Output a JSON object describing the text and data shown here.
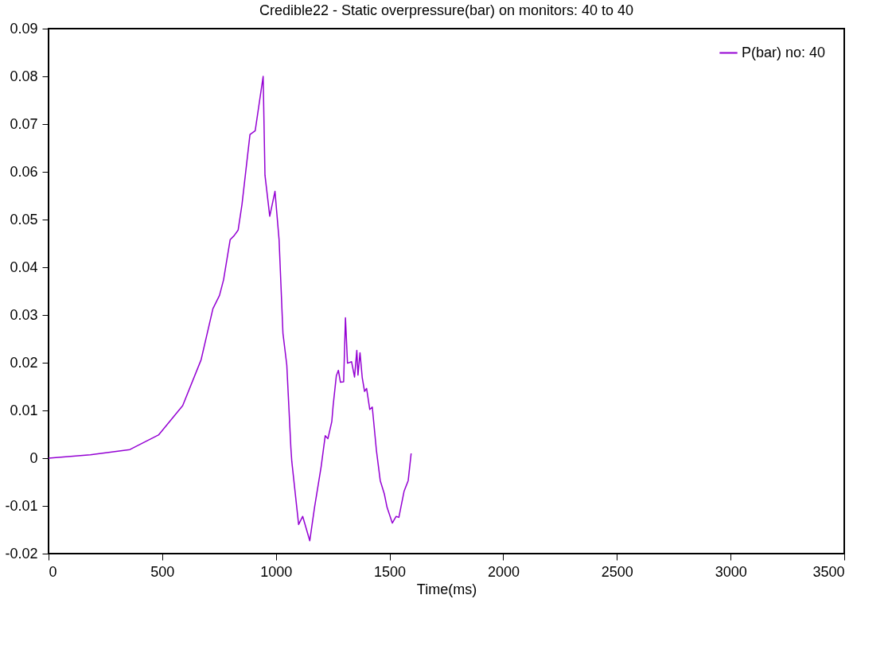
{
  "chart_data": {
    "type": "line",
    "title": "Credible22 - Static overpressure(bar) on monitors: 40  to 40",
    "xlabel": "Time(ms)",
    "series": [
      {
        "name": "P(bar) no:  40",
        "color": "#9400d3",
        "x": [
          0,
          184,
          358,
          485,
          590,
          671,
          723,
          752,
          770,
          799,
          816,
          834,
          851,
          886,
          909,
          944,
          952,
          973,
          996,
          1014,
          1031,
          1048,
          1066,
          1070,
          1100,
          1118,
          1149,
          1170,
          1199,
          1217,
          1229,
          1246,
          1252,
          1266,
          1275,
          1284,
          1298,
          1306,
          1315,
          1333,
          1346,
          1356,
          1361,
          1370,
          1380,
          1390,
          1399,
          1413,
          1424,
          1442,
          1459,
          1477,
          1489,
          1512,
          1529,
          1541,
          1564,
          1582,
          1595
        ],
        "values": [
          0,
          0.0007,
          0.0018,
          0.0049,
          0.011,
          0.0206,
          0.0313,
          0.0341,
          0.0374,
          0.0458,
          0.0466,
          0.0478,
          0.0532,
          0.0678,
          0.0686,
          0.08,
          0.0593,
          0.0507,
          0.0559,
          0.0458,
          0.0262,
          0.0195,
          0.0021,
          -0.0007,
          -0.0139,
          -0.0122,
          -0.0173,
          -0.0103,
          -0.0018,
          0.0047,
          0.0041,
          0.0077,
          0.0111,
          0.0173,
          0.0184,
          0.0159,
          0.016,
          0.0294,
          0.0199,
          0.0202,
          0.017,
          0.0226,
          0.0174,
          0.0221,
          0.0168,
          0.014,
          0.0146,
          0.0102,
          0.0107,
          0.0017,
          -0.0047,
          -0.0075,
          -0.0103,
          -0.0136,
          -0.0122,
          -0.0124,
          -0.0069,
          -0.0047,
          0.001
        ]
      }
    ],
    "xlim": [
      0,
      3500
    ],
    "xticks": [
      0,
      500,
      1000,
      1500,
      2000,
      2500,
      3000,
      3500
    ],
    "ylim": [
      -0.02,
      0.09
    ],
    "yticks": [
      -0.02,
      -0.01,
      0,
      0.01,
      0.02,
      0.03,
      0.04,
      0.05,
      0.06,
      0.07,
      0.08,
      0.09
    ],
    "legend": "top right",
    "grid": false
  }
}
